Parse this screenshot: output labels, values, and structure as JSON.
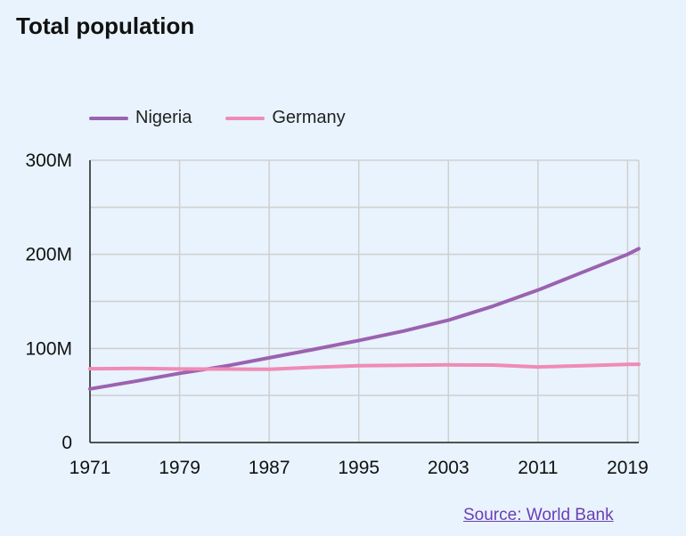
{
  "title": "Total population",
  "source_label": "Source: World Bank",
  "chart_data": {
    "type": "line",
    "title": "Total population",
    "xlabel": "",
    "ylabel": "",
    "x": [
      1971,
      1975,
      1979,
      1983,
      1987,
      1991,
      1995,
      1999,
      2003,
      2007,
      2011,
      2015,
      2019,
      2020
    ],
    "x_ticks": [
      "1971",
      "1979",
      "1987",
      "1995",
      "2003",
      "2011",
      "2019"
    ],
    "y_ticks": [
      "0",
      "100M",
      "200M",
      "300M"
    ],
    "ylim": [
      0,
      300000000
    ],
    "xlim": [
      1971,
      2020
    ],
    "grid": true,
    "legend_position": "top-left",
    "series": [
      {
        "name": "Nigeria",
        "color": "#9b62b0",
        "values": [
          57000000,
          65000000,
          73500000,
          81000000,
          90000000,
          99000000,
          108500000,
          118500000,
          130000000,
          145000000,
          162000000,
          181000000,
          200000000,
          206000000
        ]
      },
      {
        "name": "Germany",
        "color": "#f08bb6",
        "values": [
          78500000,
          78700000,
          78200000,
          78100000,
          77800000,
          80000000,
          81700000,
          82100000,
          82500000,
          82300000,
          80300000,
          81700000,
          83100000,
          83200000
        ]
      }
    ]
  }
}
